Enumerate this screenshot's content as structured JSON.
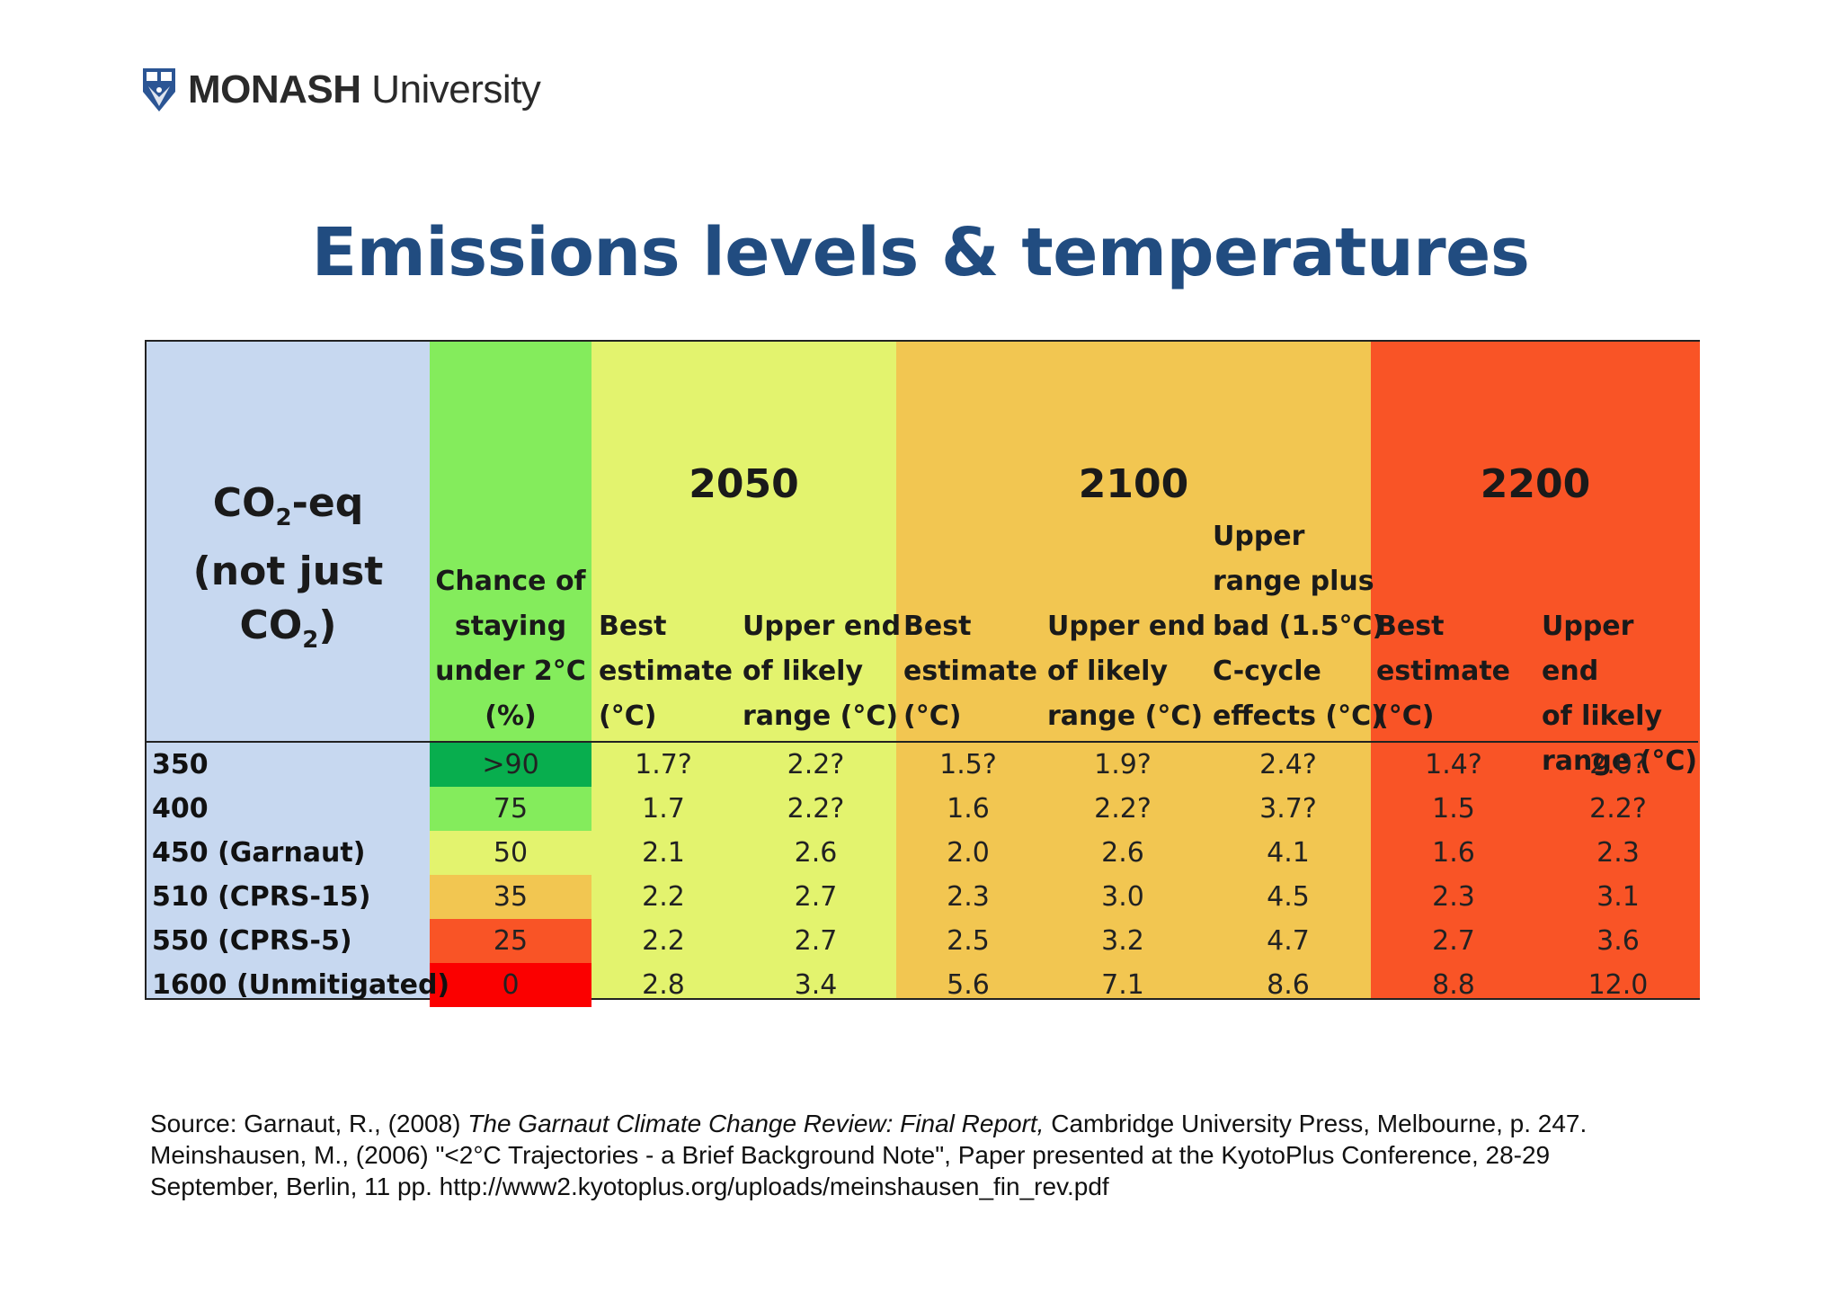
{
  "header": {
    "logo_bold": "MONASH",
    "logo_regular": " University",
    "logo_icon": "monash-crest-icon"
  },
  "title": "Emissions levels & temperatures",
  "table": {
    "co2_header_line1": "CO",
    "co2_header_line1_sub": "2",
    "co2_header_line1_rest": "-eq",
    "co2_header_line2": "(not just CO",
    "co2_header_line2_sub": "2",
    "co2_header_line2_rest": ")",
    "chance_header": [
      "Chance of",
      "staying",
      "under 2°C",
      "(%)"
    ],
    "year_2050": "2050",
    "year_2100": "2100",
    "year_2200": "2200",
    "best_estimate": [
      "Best",
      "estimate",
      "(°C)"
    ],
    "upper_end": [
      "Upper end",
      "of likely",
      "range (°C)"
    ],
    "upper_plus": [
      "Upper",
      "range plus",
      "bad (1.5°C)",
      "C-cycle",
      "effects (°C)"
    ],
    "rows": [
      {
        "label": "350",
        "chance": ">90",
        "b2050": "1.7?",
        "u2050": "2.2?",
        "b2100": "1.5?",
        "u2100": "1.9?",
        "p2100": "2.4?",
        "b2200": "1.4?",
        "u2200": "2.0?"
      },
      {
        "label": "400",
        "chance": "75",
        "b2050": "1.7",
        "u2050": "2.2?",
        "b2100": "1.6",
        "u2100": "2.2?",
        "p2100": "3.7?",
        "b2200": "1.5",
        "u2200": "2.2?"
      },
      {
        "label": "450 (Garnaut)",
        "chance": "50",
        "b2050": "2.1",
        "u2050": "2.6",
        "b2100": "2.0",
        "u2100": "2.6",
        "p2100": "4.1",
        "b2200": "1.6",
        "u2200": "2.3"
      },
      {
        "label": "510 (CPRS-15)",
        "chance": "35",
        "b2050": "2.2",
        "u2050": "2.7",
        "b2100": "2.3",
        "u2100": "3.0",
        "p2100": "4.5",
        "b2200": "2.3",
        "u2200": "3.1"
      },
      {
        "label": "550 (CPRS-5)",
        "chance": "25",
        "b2050": "2.2",
        "u2050": "2.7",
        "b2100": "2.5",
        "u2100": "3.2",
        "p2100": "4.7",
        "b2200": "2.7",
        "u2200": "3.6"
      },
      {
        "label": "1600 (Unmitigated)",
        "chance": "0",
        "b2050": "2.8",
        "u2050": "3.4",
        "b2100": "5.6",
        "u2100": "7.1",
        "p2100": "8.6",
        "b2200": "8.8",
        "u2200": "12.0"
      }
    ],
    "colors": {
      "co2_col": "#c7d8f0",
      "chance_col": "#84ec5c",
      "col_2050": "#e3f36e",
      "col_2100": "#f2c651",
      "col_2200": "#f95426",
      "chance_rows": [
        "#08ae4e",
        "#84ec5c",
        "#e3f36e",
        "#f2c651",
        "#f95426",
        "#fb0000"
      ]
    }
  },
  "source": {
    "line1_prefix": "Source: Garnaut, R., (2008) ",
    "line1_italic": "The Garnaut Climate Change Review: Final Report,",
    "line1_suffix": " Cambridge University Press, Melbourne, p. 247.",
    "line2": "Meinshausen, M., (2006) \"<2°C Trajectories - a Brief Background Note\", Paper presented at the KyotoPlus Conference, 28-29",
    "line3": "September, Berlin, 11 pp. http://www2.kyotoplus.org/uploads/meinshausen_fin_rev.pdf"
  }
}
